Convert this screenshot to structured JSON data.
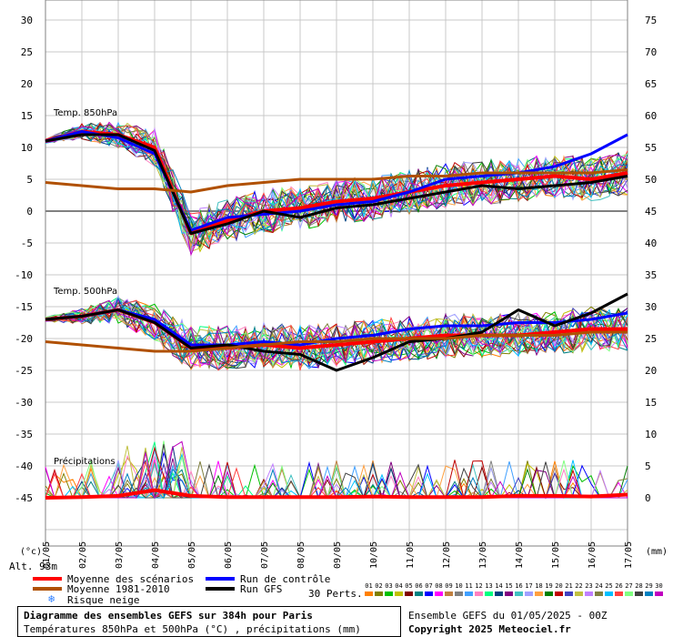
{
  "chart_data": {
    "type": "line",
    "title": "Diagramme des ensembles GEFS sur 384h pour Paris",
    "subtitle": "Températures 850hPa et 500hPa (°C) , précipitations (mm)",
    "run_info": "Ensemble GEFS du 01/05/2025 - 00Z",
    "copyright": "Copyright 2025 Meteociel.fr",
    "altitude": "Alt. 93m",
    "xlabel_left": "(°c)",
    "xlabel_right": "(mm)",
    "x_ticks": [
      "01/05",
      "02/05",
      "03/05",
      "04/05",
      "05/05",
      "06/05",
      "07/05",
      "08/05",
      "09/05",
      "10/05",
      "11/05",
      "12/05",
      "13/05",
      "14/05",
      "15/05",
      "16/05",
      "17/05"
    ],
    "y_left_ticks": [
      30,
      25,
      20,
      15,
      10,
      5,
      0,
      -5,
      -10,
      -15,
      -20,
      -25,
      -30,
      -35,
      -40,
      -45
    ],
    "y_right_ticks": [
      75,
      70,
      65,
      60,
      55,
      50,
      45,
      40,
      35,
      30,
      25,
      20,
      15,
      10,
      5,
      0
    ],
    "y_left_range": [
      -45,
      30
    ],
    "grid": true,
    "section_labels": {
      "t850": "Temp. 850hPa",
      "t500": "Temp. 500hPa",
      "precip": "Précipitations"
    },
    "legend": {
      "mean": "Moyenne des scénarios",
      "control": "Run de contrôle",
      "climo": "Moyenne 1981-2010",
      "gfs": "Run GFS",
      "snow": "Risque neige",
      "perts": "30 Perts."
    },
    "pert_labels": [
      "01",
      "02",
      "03",
      "04",
      "05",
      "06",
      "07",
      "08",
      "09",
      "10",
      "11",
      "12",
      "13",
      "14",
      "15",
      "16",
      "17",
      "18",
      "19",
      "20",
      "21",
      "22",
      "23",
      "24",
      "25",
      "26",
      "27",
      "28",
      "29",
      "30"
    ],
    "pert_colors": [
      "#ff8000",
      "#808000",
      "#00c000",
      "#c0c000",
      "#800000",
      "#008080",
      "#0000ff",
      "#ff00ff",
      "#c08040",
      "#808080",
      "#40a0ff",
      "#ff80c0",
      "#00ff80",
      "#004080",
      "#800080",
      "#40c0c0",
      "#a0a0ff",
      "#ffa040",
      "#008000",
      "#c00000",
      "#4040c0",
      "#c0c040",
      "#c080ff",
      "#808040",
      "#00c0ff",
      "#ff4040",
      "#80ff80",
      "#404040",
      "#0080c0",
      "#c000c0"
    ],
    "series": [
      {
        "name": "Moyenne des scénarios",
        "group": "t850",
        "color": "#ff0000",
        "values": [
          11,
          12.5,
          12,
          10,
          -3.5,
          -1.5,
          0,
          0.5,
          1.5,
          2,
          3,
          4,
          4.5,
          5,
          5.5,
          5,
          6
        ]
      },
      {
        "name": "Run de contrôle",
        "group": "t850",
        "color": "#0000ff",
        "values": [
          11,
          12.5,
          11.5,
          9,
          -3,
          -1,
          -0.5,
          0,
          1,
          1.5,
          3,
          5,
          5.5,
          6,
          7,
          9,
          12
        ]
      },
      {
        "name": "Run GFS",
        "group": "t850",
        "color": "#000000",
        "values": [
          11,
          12,
          12,
          9.5,
          -3.5,
          -2,
          0,
          -1,
          0.5,
          1,
          2,
          3,
          4,
          3.5,
          4,
          4.5,
          5.5
        ]
      },
      {
        "name": "Moyenne 1981-2010",
        "group": "t850",
        "color": "#b05000",
        "values": [
          4.5,
          4,
          3.5,
          3.5,
          3,
          4,
          4.5,
          5,
          5,
          5,
          5.5,
          5.5,
          6,
          6,
          6,
          6,
          6.5
        ]
      },
      {
        "name": "Moyenne des scénarios",
        "group": "t500",
        "color": "#ff0000",
        "values": [
          -17,
          -16.5,
          -15.5,
          -17.5,
          -21.5,
          -21.5,
          -21,
          -21.5,
          -21,
          -20.5,
          -20,
          -19.5,
          -19.5,
          -19.5,
          -19,
          -18.5,
          -18.5
        ]
      },
      {
        "name": "Run de contrôle",
        "group": "t500",
        "color": "#0000ff",
        "values": [
          -17,
          -16.5,
          -15.5,
          -17,
          -21,
          -21,
          -20.5,
          -21,
          -20,
          -19.5,
          -18.5,
          -18,
          -18,
          -17.5,
          -17.5,
          -17,
          -16
        ]
      },
      {
        "name": "Run GFS",
        "group": "t500",
        "color": "#000000",
        "values": [
          -17,
          -16.5,
          -15.5,
          -17.5,
          -21.5,
          -21,
          -22,
          -22.5,
          -25,
          -23,
          -20.5,
          -20,
          -19,
          -15.5,
          -18,
          -16,
          -13
        ]
      },
      {
        "name": "Moyenne 1981-2010",
        "group": "t500",
        "color": "#b05000",
        "values": [
          -20.5,
          -21,
          -21.5,
          -22,
          -22,
          -21.5,
          -21,
          -20.5,
          -20.5,
          -20,
          -20,
          -20,
          -19.5,
          -19.5,
          -19.5,
          -19,
          -19
        ]
      },
      {
        "name": "Moyenne des scénarios",
        "group": "precip",
        "color": "#ff0000",
        "values": [
          0,
          0.1,
          0.3,
          1.2,
          0.3,
          0.1,
          0.1,
          0.1,
          0.1,
          0.2,
          0.1,
          0.1,
          0.1,
          0.3,
          0.3,
          0.2,
          0.5
        ]
      }
    ]
  }
}
